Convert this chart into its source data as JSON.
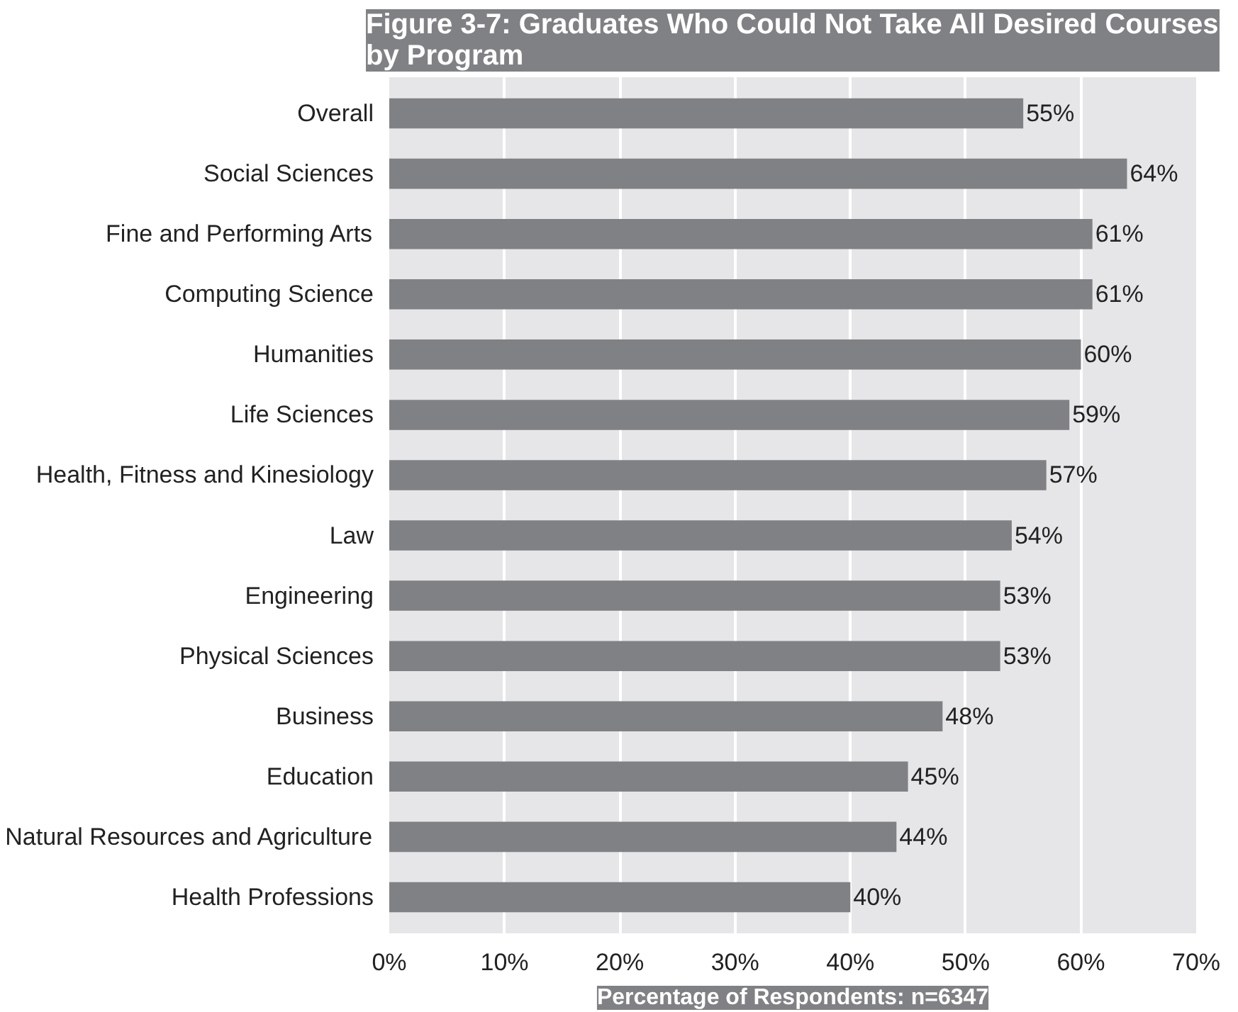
{
  "chart_data": {
    "type": "bar",
    "orientation": "horizontal",
    "title": "Figure 3-7: Graduates Who Could Not Take All Desired Courses\nby Program",
    "xlabel": "Percentage of Respondents: n=6347",
    "categories": [
      "Overall",
      "Social Sciences",
      "Fine and Performing Arts",
      "Computing Science",
      "Humanities",
      "Life Sciences",
      "Health, Fitness and Kinesiology",
      "Law",
      "Engineering",
      "Physical Sciences",
      "Business",
      "Education",
      "Natural Resources and Agriculture",
      "Health Professions"
    ],
    "values": [
      55,
      64,
      61,
      61,
      60,
      59,
      57,
      54,
      53,
      53,
      48,
      45,
      44,
      40
    ],
    "value_labels": [
      "55%",
      "64%",
      "61%",
      "61%",
      "60%",
      "59%",
      "57%",
      "54%",
      "53%",
      "53%",
      "48%",
      "45%",
      "44%",
      "40%"
    ],
    "color": "#808184",
    "xlim": [
      0,
      70
    ],
    "xticks": [
      {
        "value": 0,
        "label": "0%"
      },
      {
        "value": 10,
        "label": "10%"
      },
      {
        "value": 20,
        "label": "20%"
      },
      {
        "value": 30,
        "label": "30%"
      },
      {
        "value": 40,
        "label": "40%"
      },
      {
        "value": 50,
        "label": "50%"
      },
      {
        "value": 60,
        "label": "60%"
      },
      {
        "value": 70,
        "label": "70%"
      }
    ],
    "grid": "x"
  }
}
